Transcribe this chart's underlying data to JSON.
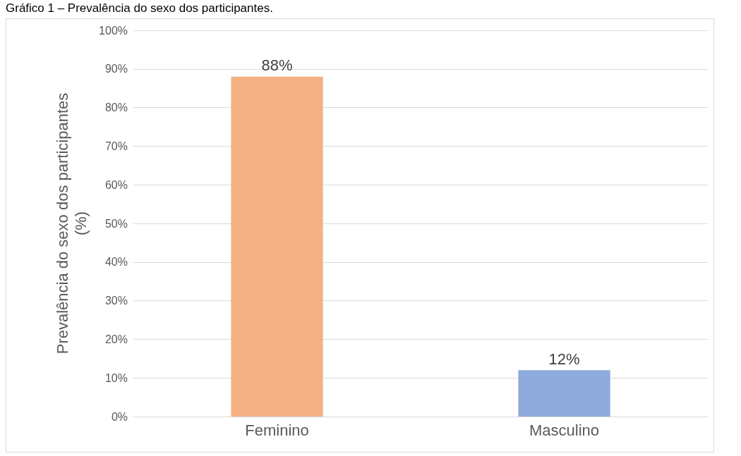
{
  "chart_data": {
    "type": "bar",
    "title": "Gráfico 1 – Prevalência do sexo dos participantes.",
    "ylabel": "Prevalência do sexo dos participantes (%)",
    "categories": [
      "Feminino",
      "Masculino"
    ],
    "values": [
      88,
      12
    ],
    "colors": [
      "#f4b183",
      "#8faadc"
    ],
    "value_labels": [
      "88%",
      "12%"
    ],
    "ylim": [
      0,
      100
    ],
    "yticks": [
      {
        "value": 0,
        "label": "0%"
      },
      {
        "value": 10,
        "label": "10%"
      },
      {
        "value": 20,
        "label": "20%"
      },
      {
        "value": 30,
        "label": "30%"
      },
      {
        "value": 40,
        "label": "40%"
      },
      {
        "value": 50,
        "label": "50%"
      },
      {
        "value": 60,
        "label": "60%"
      },
      {
        "value": 70,
        "label": "70%"
      },
      {
        "value": 80,
        "label": "80%"
      },
      {
        "value": 90,
        "label": "90%"
      },
      {
        "value": 100,
        "label": "100%"
      }
    ],
    "grid": "y"
  }
}
